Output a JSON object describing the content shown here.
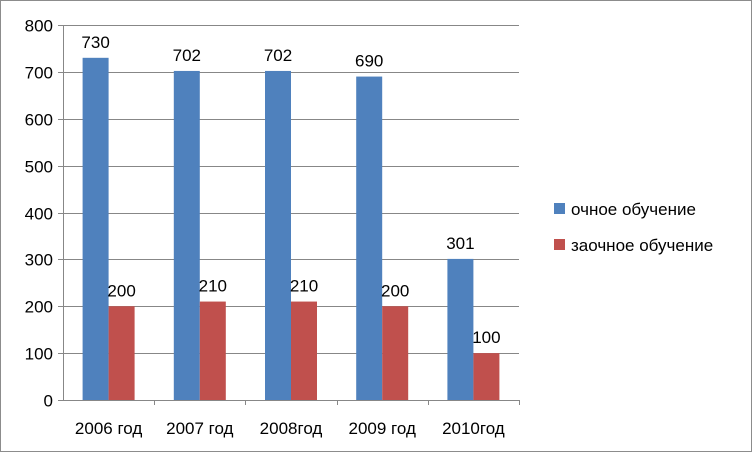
{
  "chart_data": {
    "type": "bar",
    "categories": [
      "2006 год",
      "2007 год",
      "2008год",
      "2009 год",
      "2010год"
    ],
    "series": [
      {
        "name": "очное обучение",
        "values": [
          730,
          702,
          702,
          690,
          301
        ],
        "color": "#4f81bd"
      },
      {
        "name": "заочное обучение",
        "values": [
          200,
          210,
          210,
          200,
          100
        ],
        "color": "#c0504d"
      }
    ],
    "ylim": [
      0,
      800
    ],
    "yticks": [
      0,
      100,
      200,
      300,
      400,
      500,
      600,
      700,
      800
    ],
    "grid": true,
    "legend_position": "right",
    "title": "",
    "xlabel": "",
    "ylabel": ""
  }
}
